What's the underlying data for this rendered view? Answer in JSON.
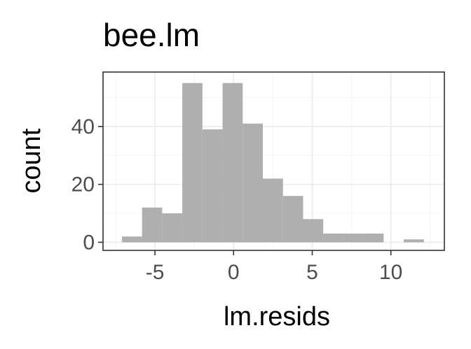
{
  "chart_data": {
    "type": "bar",
    "subtype": "histogram",
    "title": "bee.lm",
    "xlabel": "lm.resids",
    "ylabel": "count",
    "xlim": [
      -8.3,
      13.4
    ],
    "ylim": [
      -2.8,
      58.8
    ],
    "x_ticks": [
      -5,
      0,
      5,
      10
    ],
    "y_ticks": [
      0,
      20,
      40
    ],
    "x_tick_labels": [
      "-5",
      "0",
      "5",
      "10"
    ],
    "y_tick_labels": [
      "0",
      "20",
      "40"
    ],
    "bin_width": 1.28,
    "bins": [
      {
        "x0": -7.1,
        "x1": -5.82,
        "count": 2
      },
      {
        "x0": -5.82,
        "x1": -4.54,
        "count": 12
      },
      {
        "x0": -4.54,
        "x1": -3.26,
        "count": 10
      },
      {
        "x0": -3.26,
        "x1": -1.98,
        "count": 55
      },
      {
        "x0": -1.98,
        "x1": -0.7,
        "count": 39
      },
      {
        "x0": -0.7,
        "x1": 0.58,
        "count": 55
      },
      {
        "x0": 0.58,
        "x1": 1.86,
        "count": 41
      },
      {
        "x0": 1.86,
        "x1": 3.14,
        "count": 22
      },
      {
        "x0": 3.14,
        "x1": 4.42,
        "count": 16
      },
      {
        "x0": 4.42,
        "x1": 5.7,
        "count": 8
      },
      {
        "x0": 5.7,
        "x1": 6.98,
        "count": 3
      },
      {
        "x0": 6.98,
        "x1": 8.26,
        "count": 3
      },
      {
        "x0": 8.26,
        "x1": 9.54,
        "count": 3
      },
      {
        "x0": 9.54,
        "x1": 10.82,
        "count": 0
      },
      {
        "x0": 10.82,
        "x1": 12.1,
        "count": 1
      }
    ],
    "grid": true,
    "legend": "none",
    "colors": {
      "bar_fill": "#a6a6a6",
      "bar_opacity": 0.9,
      "panel_border": "#333333",
      "grid_major": "#ebebeb",
      "grid_minor": "#f5f5f5",
      "tick_label": "#4d4d4d",
      "text": "#000000"
    }
  }
}
